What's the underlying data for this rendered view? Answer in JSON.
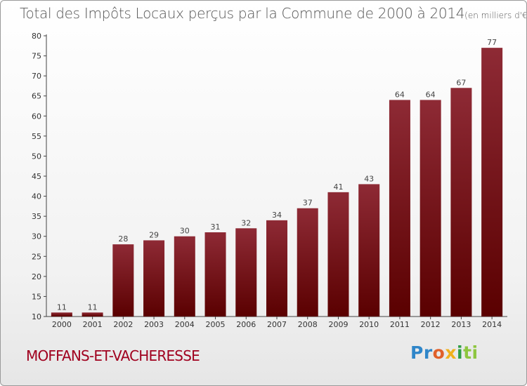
{
  "chart_data": {
    "type": "bar",
    "title": "Total des Impôts Locaux perçus par la Commune de 2000 à 2014",
    "unit": "(en milliers d'€)",
    "categories": [
      "2000",
      "2001",
      "2002",
      "2003",
      "2004",
      "2005",
      "2006",
      "2007",
      "2008",
      "2009",
      "2010",
      "2011",
      "2012",
      "2013",
      "2014"
    ],
    "values": [
      11,
      11,
      28,
      29,
      30,
      31,
      32,
      34,
      37,
      41,
      43,
      64,
      64,
      67,
      77
    ],
    "ylim": [
      10,
      80
    ],
    "yticks": [
      10,
      15,
      20,
      25,
      30,
      35,
      40,
      45,
      50,
      55,
      60,
      65,
      70,
      75,
      80
    ],
    "xlabel": "",
    "ylabel": "",
    "grid": false,
    "bar_color_top": "#8e2a35",
    "bar_color_bottom": "#5a0000"
  },
  "commune_name": "MOFFANS-ET-VACHERESSE",
  "logo": {
    "parts": [
      "Pr",
      "o",
      "x",
      "i",
      "ti"
    ],
    "colors": [
      "#2f86c9",
      "#e0602a",
      "#f0b11c",
      "#2e9d45",
      "#8dc63f"
    ]
  }
}
